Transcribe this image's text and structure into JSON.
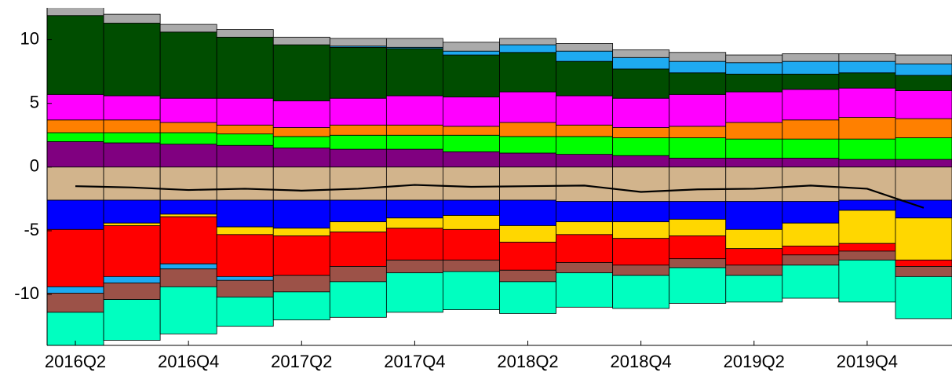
{
  "chart_data": {
    "type": "stacked_bar",
    "categories": [
      "2016Q2",
      null,
      "2016Q4",
      null,
      "2017Q2",
      null,
      "2017Q4",
      null,
      "2018Q2",
      null,
      "2018Q4",
      null,
      "2019Q2",
      null,
      "2019Q4",
      null
    ],
    "ylim": [
      -14,
      12.5
    ],
    "yticks": [
      -10,
      -5,
      0,
      5,
      10
    ],
    "series": [
      {
        "color": "#800080",
        "values": [
          2.0,
          1.9,
          1.8,
          1.7,
          1.5,
          1.4,
          1.4,
          1.2,
          1.1,
          1.0,
          0.9,
          0.7,
          0.7,
          0.7,
          0.6,
          0.6
        ]
      },
      {
        "color": "#00ff00",
        "values": [
          0.7,
          0.8,
          0.9,
          0.9,
          0.9,
          1.1,
          1.1,
          1.3,
          1.3,
          1.4,
          1.4,
          1.6,
          1.5,
          1.5,
          1.6,
          1.7
        ]
      },
      {
        "color": "#ff8000",
        "values": [
          1.0,
          1.0,
          0.8,
          0.7,
          0.7,
          0.8,
          0.8,
          0.7,
          1.1,
          0.9,
          0.8,
          0.9,
          1.3,
          1.5,
          1.7,
          1.5
        ]
      },
      {
        "color": "#ff00ff",
        "values": [
          2.0,
          1.9,
          1.9,
          2.1,
          2.1,
          2.1,
          2.3,
          2.3,
          2.4,
          2.3,
          2.3,
          2.5,
          2.4,
          2.4,
          2.3,
          2.2
        ]
      },
      {
        "color": "#004d00",
        "values": [
          6.2,
          5.7,
          5.2,
          4.8,
          4.4,
          4.0,
          3.7,
          3.3,
          3.1,
          2.7,
          2.3,
          1.7,
          1.4,
          1.2,
          1.2,
          1.2
        ]
      },
      {
        "color": "#1eaaf1",
        "values": [
          0,
          0,
          0,
          0,
          0,
          0.1,
          0.1,
          0.3,
          0.6,
          0.8,
          0.9,
          0.9,
          0.9,
          1.0,
          0.9,
          0.9
        ]
      },
      {
        "color": "#aaaaaa",
        "values": [
          0.7,
          0.7,
          0.6,
          0.6,
          0.6,
          0.6,
          0.7,
          0.7,
          0.5,
          0.6,
          0.6,
          0.7,
          0.6,
          0.6,
          0.6,
          0.7
        ]
      },
      {
        "color": "#d2b48c",
        "values": [
          -2.6,
          -2.6,
          -2.6,
          -2.6,
          -2.6,
          -2.6,
          -2.6,
          -2.6,
          -2.6,
          -2.7,
          -2.7,
          -2.7,
          -2.7,
          -2.7,
          -2.6,
          -2.6
        ]
      },
      {
        "color": "#0000ff",
        "values": [
          -2.3,
          -1.8,
          -1.1,
          -2.1,
          -2.2,
          -1.7,
          -1.4,
          -1.2,
          -2.0,
          -1.6,
          -1.6,
          -1.4,
          -2.2,
          -1.7,
          -0.8,
          -1.4
        ]
      },
      {
        "color": "#ffd700",
        "values": [
          0,
          -0.2,
          -0.2,
          -0.6,
          -0.6,
          -0.8,
          -0.8,
          -1.1,
          -1.3,
          -1.0,
          -1.3,
          -1.3,
          -1.5,
          -1.8,
          -2.6,
          -3.3
        ]
      },
      {
        "color": "#ff0000",
        "values": [
          -4.5,
          -4.0,
          -3.7,
          -3.3,
          -3.1,
          -2.7,
          -2.5,
          -2.4,
          -2.2,
          -2.2,
          -2.1,
          -1.8,
          -1.3,
          -0.7,
          -0.6,
          -0.5
        ]
      },
      {
        "color": "#1eaaf1",
        "values": [
          -0.5,
          -0.5,
          -0.4,
          -0.3,
          0,
          0,
          0,
          0,
          0,
          0,
          0,
          0,
          0,
          0,
          0,
          0
        ]
      },
      {
        "color": "#9c5248",
        "values": [
          -1.5,
          -1.3,
          -1.4,
          -1.3,
          -1.3,
          -1.2,
          -1.0,
          -0.9,
          -0.9,
          -0.8,
          -0.8,
          -0.7,
          -0.8,
          -0.8,
          -0.7,
          -0.8
        ]
      },
      {
        "color": "#00ffc0",
        "values": [
          -2.8,
          -3.2,
          -3.7,
          -2.3,
          -2.2,
          -2.8,
          -3.1,
          -3.0,
          -2.5,
          -2.7,
          -2.6,
          -2.8,
          -2.1,
          -2.6,
          -3.3,
          -3.3
        ]
      }
    ],
    "line": {
      "color": "#000000",
      "values": [
        -1.5,
        -1.6,
        -1.8,
        -1.7,
        -1.85,
        -1.7,
        -1.4,
        -1.55,
        -1.5,
        -1.45,
        -1.95,
        -1.75,
        -1.7,
        -1.45,
        -1.7,
        -3.2
      ]
    }
  }
}
